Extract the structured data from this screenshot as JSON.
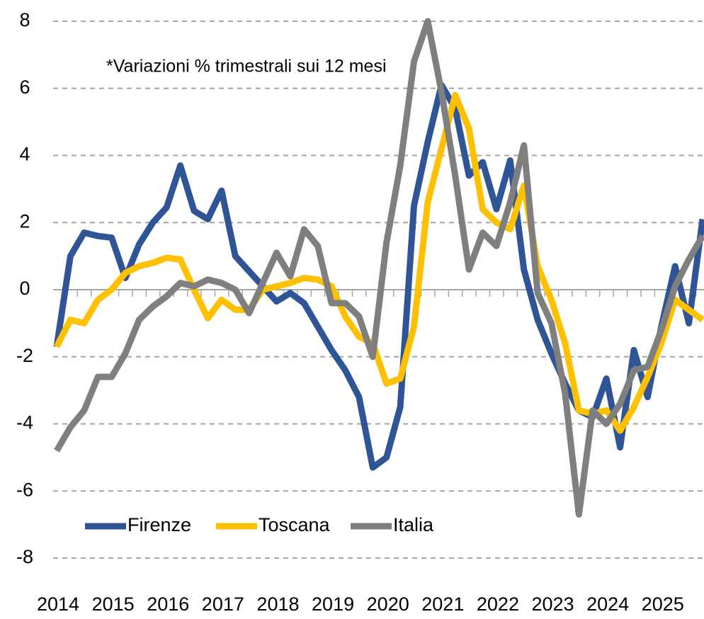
{
  "chart_data": {
    "type": "line",
    "annotation": "*Variazioni % trimestrali sui 12 mesi",
    "categories": [
      "2014",
      null,
      null,
      null,
      "2015",
      null,
      null,
      null,
      "2016",
      null,
      null,
      null,
      "2017",
      null,
      null,
      null,
      "2018",
      null,
      null,
      null,
      "2019",
      null,
      null,
      null,
      "2020",
      null,
      null,
      null,
      "2021",
      null,
      null,
      null,
      "2022",
      null,
      null,
      null,
      "2023",
      null,
      null,
      null,
      "2024",
      null,
      null,
      null,
      "2025",
      null,
      null,
      null
    ],
    "series": [
      {
        "name": "Firenze",
        "color": "#2f5597",
        "values": [
          -1.7,
          1.0,
          1.7,
          1.6,
          1.55,
          0.35,
          1.35,
          2.0,
          2.45,
          3.7,
          2.35,
          2.1,
          2.95,
          1.0,
          0.55,
          0.1,
          -0.35,
          -0.1,
          -0.4,
          -1.1,
          -1.8,
          -2.4,
          -3.2,
          -5.3,
          -5.0,
          -3.5,
          2.5,
          4.4,
          6.1,
          5.4,
          3.4,
          3.8,
          2.4,
          3.85,
          0.6,
          -0.9,
          -1.9,
          -2.8,
          -3.6,
          -3.8,
          -2.65,
          -4.7,
          -1.8,
          -3.2,
          -1.1,
          0.7,
          -1.0,
          2.1
        ]
      },
      {
        "name": "Toscana",
        "color": "#ffc000",
        "values": [
          -1.7,
          -0.9,
          -1.0,
          -0.3,
          0.0,
          0.5,
          0.7,
          0.8,
          0.95,
          0.9,
          0.0,
          -0.85,
          -0.3,
          -0.6,
          -0.6,
          0.0,
          0.1,
          0.2,
          0.35,
          0.3,
          0.1,
          -0.8,
          -1.4,
          -1.6,
          -2.8,
          -2.65,
          -1.1,
          2.6,
          4.2,
          5.8,
          4.8,
          2.4,
          2.0,
          1.8,
          3.1,
          0.7,
          -0.3,
          -1.6,
          -3.6,
          -3.7,
          -3.6,
          -4.2,
          -3.5,
          -2.6,
          -1.6,
          -0.3,
          -0.6,
          -0.9
        ]
      },
      {
        "name": "Italia",
        "color": "#7f7f7f",
        "values": [
          -4.8,
          -4.1,
          -3.6,
          -2.6,
          -2.6,
          -1.9,
          -0.9,
          -0.5,
          -0.2,
          0.2,
          0.1,
          0.3,
          0.2,
          0.0,
          -0.7,
          0.2,
          1.1,
          0.4,
          1.8,
          1.3,
          -0.4,
          -0.4,
          -0.8,
          -2.0,
          1.4,
          3.7,
          6.8,
          8.0,
          5.9,
          3.4,
          0.6,
          1.7,
          1.3,
          2.6,
          4.3,
          -0.1,
          -1.0,
          -3.1,
          -6.7,
          -3.6,
          -4.0,
          -3.4,
          -2.4,
          -2.3,
          -1.2,
          0.1,
          0.9,
          1.6
        ]
      }
    ],
    "ylim": [
      -8,
      8
    ],
    "yticks": [
      -8,
      -6,
      -4,
      -2,
      0,
      2,
      4,
      6,
      8
    ],
    "grid": true,
    "legend": "lower left"
  }
}
